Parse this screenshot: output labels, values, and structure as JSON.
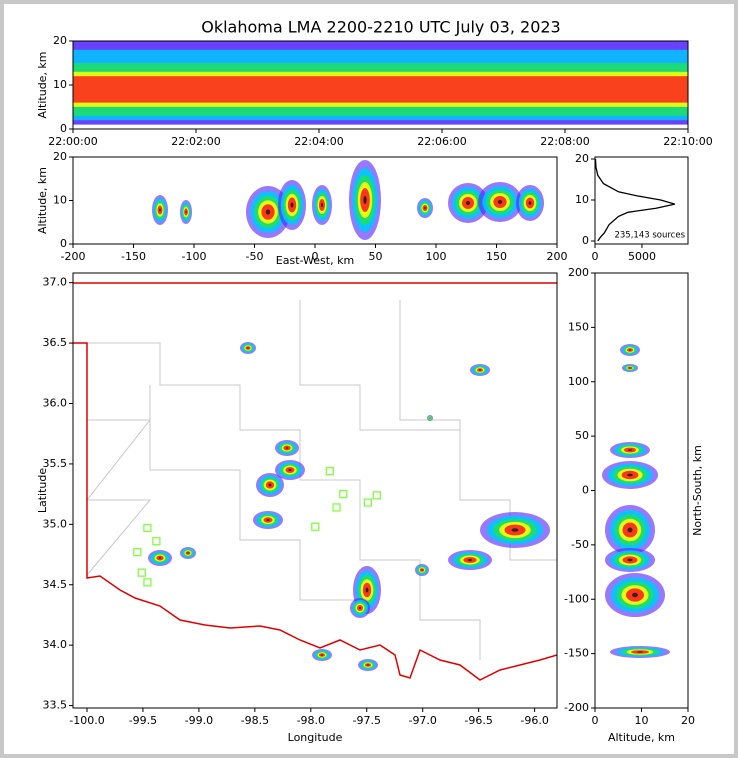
{
  "chart_data": [
    {
      "type": "heatmap",
      "title": "Oklahoma LMA 2200-2210 UTC July 03, 2023",
      "ylabel": "Altitude, km",
      "xticks": [
        "22:00:00",
        "22:02:00",
        "22:04:00",
        "22:06:00",
        "22:08:00",
        "22:10:00"
      ],
      "ylim": [
        0,
        20
      ],
      "yticks": [
        0,
        10,
        20
      ]
    },
    {
      "type": "heatmap",
      "xlabel": "East-West, km",
      "ylabel": "Altitude, km",
      "xlim": [
        -200,
        200
      ],
      "xticks": [
        -200,
        -150,
        -100,
        -50,
        0,
        50,
        100,
        150,
        200
      ],
      "ylim": [
        0,
        20
      ],
      "yticks": [
        0,
        10,
        20
      ]
    },
    {
      "type": "line",
      "annotation": "235,143 sources",
      "color": "#000000",
      "x": [
        300,
        600,
        1000,
        1500,
        2500,
        3500,
        6500,
        8500,
        7000,
        4500,
        2500,
        900,
        300,
        100,
        50
      ],
      "y": [
        0,
        1,
        2,
        4,
        6,
        7,
        8,
        9,
        10,
        11,
        12,
        14,
        16,
        18,
        20
      ],
      "xlim": [
        0,
        9900
      ],
      "xticks": [
        0,
        5000
      ],
      "ylim": [
        -0.73,
        20.49
      ],
      "yticks": [
        0,
        10,
        20
      ]
    },
    {
      "type": "scatter",
      "xlabel": "Longitude",
      "ylabel": "Latitude",
      "color": "#80ff40",
      "x": [
        -99.46,
        -99.38,
        -99.55,
        -99.51,
        -99.46,
        -97.83,
        -97.71,
        -97.77,
        -97.96,
        -97.49,
        -97.41
      ],
      "y": [
        34.97,
        34.86,
        34.77,
        34.6,
        34.52,
        35.44,
        35.25,
        35.14,
        34.98,
        35.18,
        35.24
      ],
      "xlim": [
        -100.125,
        -95.8
      ],
      "xticks": [
        {
          "value": -100,
          "label": "-100.0"
        },
        {
          "value": -99.5,
          "label": "-99.5"
        },
        {
          "value": -99,
          "label": "-99.0"
        },
        {
          "value": -98.5,
          "label": "-98.5"
        },
        {
          "value": -98,
          "label": "-98.0"
        },
        {
          "value": -97.5,
          "label": "-97.5"
        },
        {
          "value": -97,
          "label": "-97.0"
        },
        {
          "value": -96.5,
          "label": "-96.5"
        },
        {
          "value": -96,
          "label": "-96.0"
        }
      ],
      "ylim": [
        33.48,
        37.08
      ],
      "yticks": [
        {
          "value": 33.5,
          "label": "33.5"
        },
        {
          "value": 34,
          "label": "34.0"
        },
        {
          "value": 34.5,
          "label": "34.5"
        },
        {
          "value": 35,
          "label": "35.0"
        },
        {
          "value": 35.5,
          "label": "35.5"
        },
        {
          "value": 36,
          "label": "36.0"
        },
        {
          "value": 36.5,
          "label": "36.5"
        },
        {
          "value": 37,
          "label": "37.0"
        }
      ]
    },
    {
      "type": "heatmap",
      "xlabel": "Altitude, km",
      "ylabel": "North-South, km",
      "xlim": [
        0,
        20
      ],
      "xticks": [
        0,
        10,
        20
      ],
      "ylim": [
        -200,
        200
      ],
      "yticks": [
        -200,
        -150,
        -100,
        -50,
        0,
        50,
        100,
        150,
        200
      ]
    }
  ]
}
